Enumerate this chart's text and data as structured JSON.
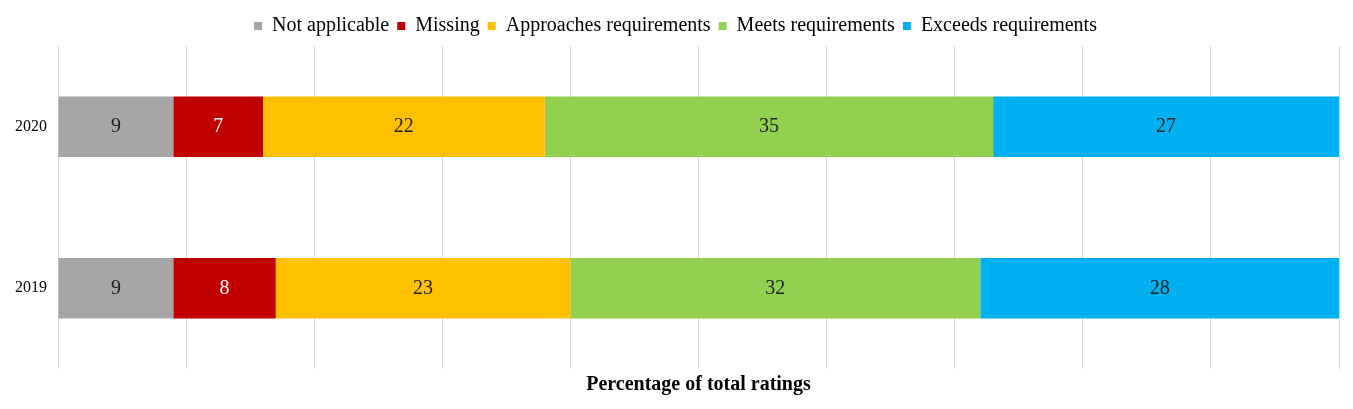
{
  "chart_data": {
    "type": "bar",
    "orientation": "horizontal",
    "stacked": true,
    "xlabel": "Percentage of total ratings",
    "categories": [
      "2020",
      "2019"
    ],
    "series": [
      {
        "name": "Not applicable",
        "color": "#a6a6a6",
        "values": [
          9,
          9
        ]
      },
      {
        "name": "Missing",
        "color": "#c00000",
        "values": [
          7,
          8
        ]
      },
      {
        "name": "Approaches requirements",
        "color": "#ffc000",
        "values": [
          22,
          23
        ]
      },
      {
        "name": "Meets requirements",
        "color": "#92d050",
        "values": [
          35,
          32
        ]
      },
      {
        "name": "Exceeds requirements",
        "color": "#00b0f0",
        "values": [
          27,
          28
        ]
      }
    ],
    "tick_labels": "y",
    "grid": "x",
    "legend": "top",
    "data_labels": true
  }
}
